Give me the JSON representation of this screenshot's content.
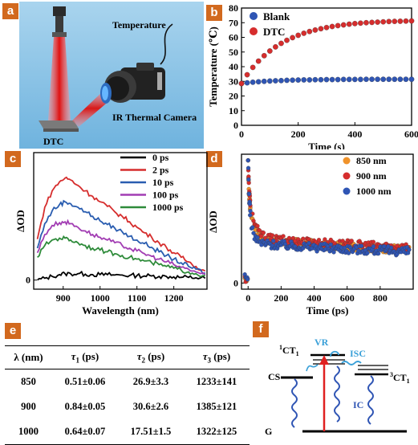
{
  "panels": {
    "a": "a",
    "b": "b",
    "c": "c",
    "d": "d",
    "e": "e",
    "f": "f"
  },
  "panel_a": {
    "temperature_label": "Temperature",
    "camera_label": "IR Thermal Camera",
    "sample_label": "DTC"
  },
  "chart_data": [
    {
      "id": "b",
      "type": "scatter",
      "xlabel": "Time (s)",
      "ylabel": "Temperature (℃)",
      "xlim": [
        0,
        600
      ],
      "ylim": [
        0,
        80
      ],
      "xticks": [
        0,
        200,
        400,
        600
      ],
      "yticks": [
        0,
        10,
        20,
        30,
        40,
        50,
        60,
        70,
        80
      ],
      "xtick_labels": [
        "0",
        "200",
        "400",
        "600"
      ],
      "ytick_labels": [
        "0",
        "10",
        "20",
        "30",
        "40",
        "50",
        "60",
        "70",
        "80"
      ],
      "legend_position": "top-left",
      "series": [
        {
          "name": "Blank",
          "color": "#2f55b4",
          "x": [
            0,
            20,
            40,
            60,
            80,
            100,
            120,
            140,
            160,
            180,
            200,
            220,
            240,
            260,
            280,
            300,
            320,
            340,
            360,
            380,
            400,
            420,
            440,
            460,
            480,
            500,
            520,
            540,
            560,
            580,
            600
          ],
          "y": [
            28.5,
            29,
            29.4,
            29.7,
            30,
            30.2,
            30.4,
            30.5,
            30.7,
            30.8,
            30.9,
            31,
            31,
            31.1,
            31.1,
            31.2,
            31.2,
            31.2,
            31.3,
            31.3,
            31.3,
            31.3,
            31.4,
            31.4,
            31.4,
            31.4,
            31.4,
            31.4,
            31.4,
            31.4,
            31.4
          ]
        },
        {
          "name": "DTC",
          "color": "#d62d2d",
          "x": [
            0,
            20,
            40,
            60,
            80,
            100,
            120,
            140,
            160,
            180,
            200,
            220,
            240,
            260,
            280,
            300,
            320,
            340,
            360,
            380,
            400,
            420,
            440,
            460,
            480,
            500,
            520,
            540,
            560,
            580,
            600
          ],
          "y": [
            28.5,
            34.5,
            39.5,
            43.8,
            47.5,
            50.7,
            53.5,
            55.9,
            58,
            59.8,
            61.4,
            62.8,
            64,
            65,
            65.9,
            66.7,
            67.4,
            68,
            68.5,
            69,
            69.4,
            69.7,
            70,
            70.2,
            70.4,
            70.6,
            70.8,
            70.9,
            71,
            71.1,
            71.2
          ]
        }
      ]
    },
    {
      "id": "c",
      "type": "line",
      "xlabel": "Wavelength (nm)",
      "ylabel": "ΔOD",
      "xlim": [
        820,
        1290
      ],
      "ylim": [
        -0.1,
        1.4
      ],
      "xticks": [
        900,
        1000,
        1100,
        1200
      ],
      "xtick_labels": [
        "900",
        "1000",
        "1100",
        "1200"
      ],
      "yticks": [
        0
      ],
      "ytick_labels": [
        "0"
      ],
      "legend_position": "top-right",
      "x": [
        830,
        850,
        870,
        890,
        905,
        920,
        940,
        960,
        980,
        1000,
        1020,
        1040,
        1060,
        1080,
        1100,
        1120,
        1140,
        1160,
        1180,
        1200,
        1220,
        1240,
        1260,
        1285
      ],
      "series": [
        {
          "name": "0 ps",
          "color": "#000000",
          "values": [
            0.0,
            0.02,
            0.04,
            0.06,
            0.07,
            0.07,
            0.07,
            0.065,
            0.06,
            0.06,
            0.06,
            0.055,
            0.055,
            0.05,
            0.05,
            0.045,
            0.045,
            0.04,
            0.04,
            0.035,
            0.03,
            0.03,
            0.025,
            0.02
          ]
        },
        {
          "name": "2 ps",
          "color": "#d62d2d",
          "values": [
            0.45,
            0.8,
            0.98,
            1.08,
            1.12,
            1.1,
            1.04,
            0.98,
            0.92,
            0.86,
            0.81,
            0.75,
            0.7,
            0.64,
            0.58,
            0.52,
            0.47,
            0.41,
            0.36,
            0.3,
            0.25,
            0.2,
            0.15,
            0.1
          ]
        },
        {
          "name": "10 ps",
          "color": "#2a5db0",
          "values": [
            0.35,
            0.62,
            0.76,
            0.83,
            0.86,
            0.84,
            0.8,
            0.75,
            0.7,
            0.65,
            0.61,
            0.57,
            0.53,
            0.48,
            0.44,
            0.4,
            0.36,
            0.31,
            0.27,
            0.23,
            0.19,
            0.15,
            0.12,
            0.08
          ]
        },
        {
          "name": "100 ps",
          "color": "#a23db3",
          "values": [
            0.3,
            0.5,
            0.6,
            0.63,
            0.64,
            0.62,
            0.58,
            0.54,
            0.5,
            0.47,
            0.44,
            0.41,
            0.38,
            0.35,
            0.32,
            0.29,
            0.26,
            0.23,
            0.2,
            0.17,
            0.14,
            0.12,
            0.09,
            0.06
          ]
        },
        {
          "name": "1000 ps",
          "color": "#2e8b3a",
          "values": [
            0.25,
            0.38,
            0.44,
            0.46,
            0.46,
            0.44,
            0.41,
            0.38,
            0.35,
            0.33,
            0.31,
            0.29,
            0.27,
            0.25,
            0.23,
            0.21,
            0.19,
            0.17,
            0.15,
            0.13,
            0.11,
            0.09,
            0.07,
            0.05
          ]
        }
      ]
    },
    {
      "id": "d",
      "type": "scatter",
      "xlabel": "Time (ps)",
      "ylabel": "ΔOD",
      "xlim": [
        -40,
        1000
      ],
      "ylim": [
        -0.05,
        1.05
      ],
      "xticks": [
        0,
        200,
        400,
        600,
        800
      ],
      "xtick_labels": [
        "0",
        "200",
        "400",
        "600",
        "800"
      ],
      "yticks": [
        0
      ],
      "ytick_labels": [
        "0"
      ],
      "legend_position": "top-right",
      "series": [
        {
          "name": "850 nm",
          "color": "#f0932b",
          "tau": [
            0.51,
            26.9,
            1233
          ],
          "amp": [
            0.12,
            0.42,
            0.16
          ],
          "bg": 0.2
        },
        {
          "name": "900 nm",
          "color": "#d62d2d",
          "tau": [
            0.84,
            30.6,
            1385
          ],
          "amp": [
            0.1,
            0.44,
            0.16
          ],
          "bg": 0.21
        },
        {
          "name": "1000 nm",
          "color": "#2f55b4",
          "tau": [
            0.64,
            17.51,
            1322
          ],
          "amp": [
            0.14,
            0.5,
            0.14
          ],
          "bg": 0.19
        }
      ]
    }
  ],
  "table": {
    "headers": [
      "λ (nm)",
      "τ1 (ps)",
      "τ2 (ps)",
      "τ3 (ps)"
    ],
    "rows": [
      [
        "850",
        "0.51±0.06",
        "26.9±3.3",
        "1233±141"
      ],
      [
        "900",
        "0.84±0.05",
        "30.6±2.6",
        "1385±121"
      ],
      [
        "1000",
        "0.64±0.07",
        "17.51±1.5",
        "1322±125"
      ]
    ]
  },
  "diagram_f": {
    "vr": "VR",
    "isc": "ISC",
    "ic": "IC",
    "cs": "CS",
    "g": "G",
    "ct1_singlet": "1CT1",
    "ct1_triplet": "3CT1"
  }
}
